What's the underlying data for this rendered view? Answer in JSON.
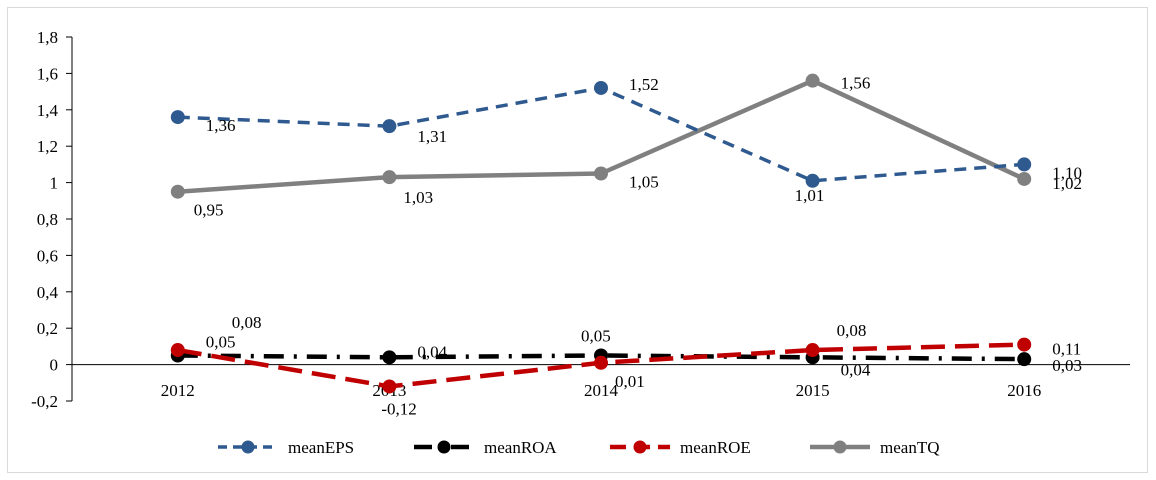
{
  "chart_data": {
    "type": "line",
    "title": "",
    "xlabel": "",
    "ylabel": "",
    "categories": [
      "2012",
      "2013",
      "2014",
      "2015",
      "2016"
    ],
    "ylim": [
      -0.2,
      1.8
    ],
    "yticks": [
      -0.2,
      0,
      0.2,
      0.4,
      0.6,
      0.8,
      1,
      1.2,
      1.4,
      1.6,
      1.8
    ],
    "ytick_labels": [
      "-0,2",
      "0",
      "0,2",
      "0,4",
      "0,6",
      "0,8",
      "1",
      "1,2",
      "1,4",
      "1,6",
      "1,8"
    ],
    "grid": false,
    "legend_position": "bottom",
    "series": [
      {
        "name": "meanEPS",
        "values": [
          1.36,
          1.31,
          1.52,
          1.01,
          1.1
        ],
        "labels": [
          "1,36",
          "1,31",
          "1,52",
          "1,01",
          "1,10"
        ],
        "color": "#2f5a8f",
        "style": "dashed"
      },
      {
        "name": "meanROA",
        "values": [
          0.05,
          0.04,
          0.05,
          0.04,
          0.03
        ],
        "labels": [
          "0,05",
          "0,04",
          "0,05",
          "0,04",
          "0,03"
        ],
        "color": "#000000",
        "style": "dash-dot"
      },
      {
        "name": "meanROE",
        "values": [
          0.08,
          -0.12,
          0.01,
          0.08,
          0.11
        ],
        "labels": [
          "0,08",
          "-0,12",
          "0,01",
          "0,08",
          "0,11"
        ],
        "color": "#c00000",
        "style": "long-dash"
      },
      {
        "name": "meanTQ",
        "values": [
          0.95,
          1.03,
          1.05,
          1.56,
          1.02
        ],
        "labels": [
          "0,95",
          "1,03",
          "1,05",
          "1,56",
          "1,02"
        ],
        "color": "#808080",
        "style": "solid"
      }
    ]
  }
}
